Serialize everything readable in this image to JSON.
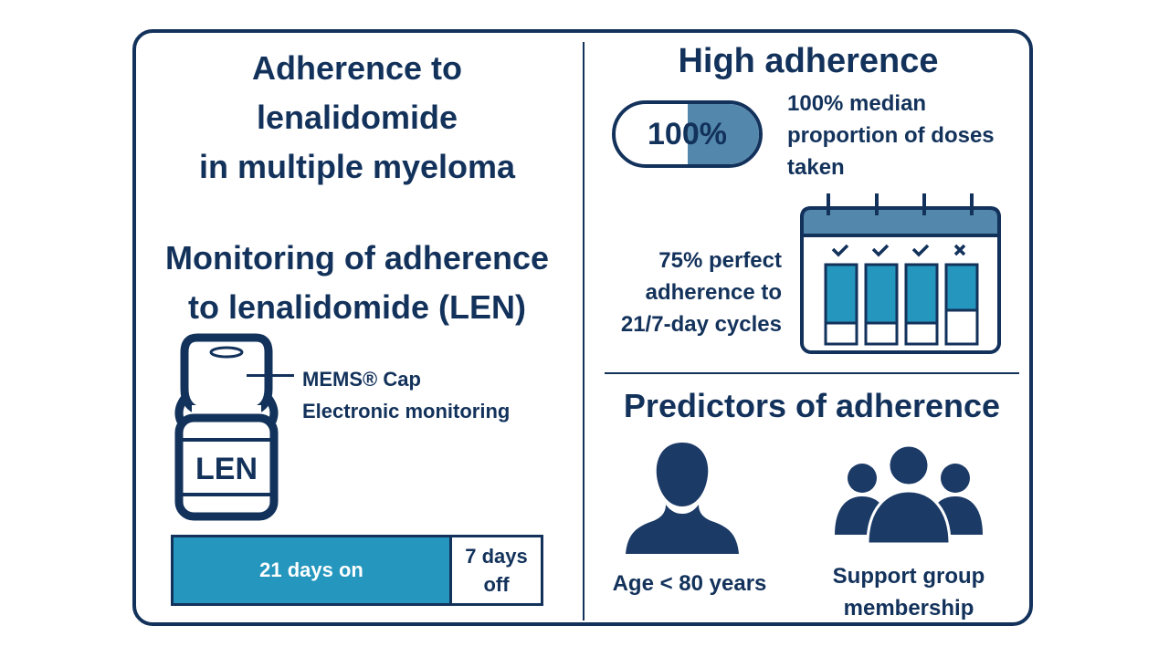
{
  "left": {
    "title_lines": [
      "Adherence to",
      "lenalidomide",
      "in multiple myeloma"
    ],
    "monitoring_lines": [
      "Monitoring of adherence",
      "to lenalidomide (LEN)"
    ],
    "bottle_label": "LEN",
    "cap_label_line1": "MEMS® Cap",
    "cap_label_line2": "Electronic monitoring",
    "cycle": {
      "on_label": "21 days on",
      "off_line1": "7 days",
      "off_line2": "off",
      "on_days": 21,
      "off_days": 7
    }
  },
  "right": {
    "high_title": "High adherence",
    "pill_value": "100%",
    "pill_fill_fraction": 0.5,
    "median_lines": [
      "100% median",
      "proportion of doses",
      "taken"
    ],
    "perfect_lines": [
      "75% perfect",
      "adherence to",
      "21/7-day cycles"
    ],
    "calendar_marks": [
      "check",
      "check",
      "check",
      "cross"
    ],
    "predictors_title": "Predictors of adherence",
    "predictor_age": "Age < 80 years",
    "predictor_support_lines": [
      "Support group",
      "membership"
    ]
  },
  "colors": {
    "navy": "#13325b",
    "teal": "#2596be",
    "steel": "#5387ac"
  },
  "icons": [
    "pill-bottle-icon",
    "calendar-icon",
    "check-icon",
    "cross-icon",
    "person-icon",
    "group-icon"
  ]
}
